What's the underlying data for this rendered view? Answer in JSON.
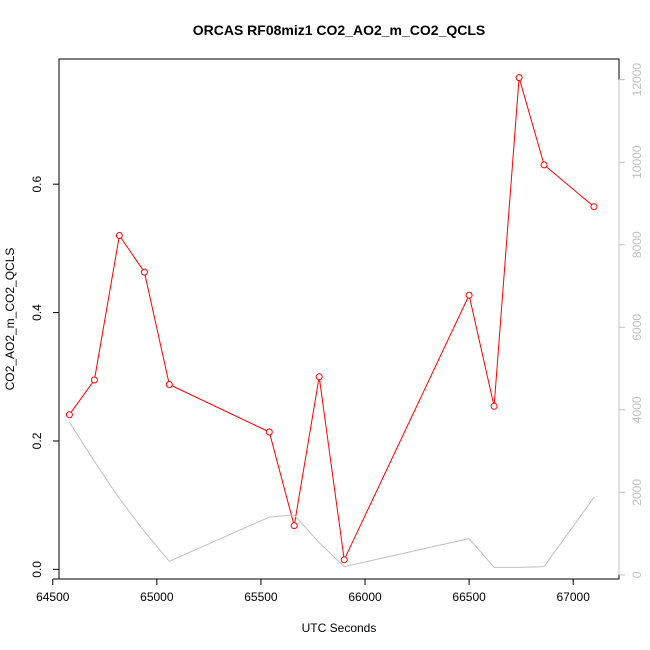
{
  "chart_data": {
    "type": "line",
    "title": "ORCAS RF08miz1 CO2_AO2_m_CO2_QCLS",
    "xlabel": "UTC Seconds",
    "ylabel": "CO2_AO2_m_CO2_QCLS",
    "xlim": [
      64530,
      67220
    ],
    "ylim": [
      -0.015,
      0.795
    ],
    "y2lim": [
      -100,
      12500
    ],
    "x_ticks": [
      64500,
      65000,
      65500,
      66000,
      66500,
      67000
    ],
    "y_ticks": [
      0.0,
      0.2,
      0.4,
      0.6
    ],
    "y2_ticks": [
      0,
      2000,
      4000,
      6000,
      8000,
      10000,
      12000
    ],
    "x_tick_labels": [
      "64500",
      "65000",
      "65500",
      "66000",
      "66500",
      "67000"
    ],
    "y_tick_labels": [
      "0.0",
      "0.2",
      "0.4",
      "0.6"
    ],
    "y2_tick_labels": [
      "0",
      "2000",
      "4000",
      "6000",
      "8000",
      "10000",
      "12000"
    ],
    "series": [
      {
        "axis": "left",
        "color": "#ff0000",
        "marker": "open-circle",
        "x": [
          64580,
          64700,
          64820,
          64940,
          65060,
          65540,
          65660,
          65780,
          65900,
          66500,
          66620,
          66740,
          66860,
          67100
        ],
        "values": [
          0.241,
          0.295,
          0.52,
          0.463,
          0.288,
          0.214,
          0.068,
          0.3,
          0.015,
          0.427,
          0.254,
          0.766,
          0.63,
          0.565
        ]
      },
      {
        "axis": "right",
        "color": "#c0c0c0",
        "marker": "none",
        "x": [
          64580,
          64700,
          64820,
          64940,
          65060,
          65540,
          65660,
          65780,
          65900,
          66500,
          66620,
          66740,
          66860,
          67100
        ],
        "values": [
          3700,
          2750,
          1850,
          1050,
          330,
          1400,
          1450,
          780,
          200,
          880,
          180,
          180,
          200,
          1880
        ]
      }
    ],
    "grid": false,
    "legend": "none"
  }
}
